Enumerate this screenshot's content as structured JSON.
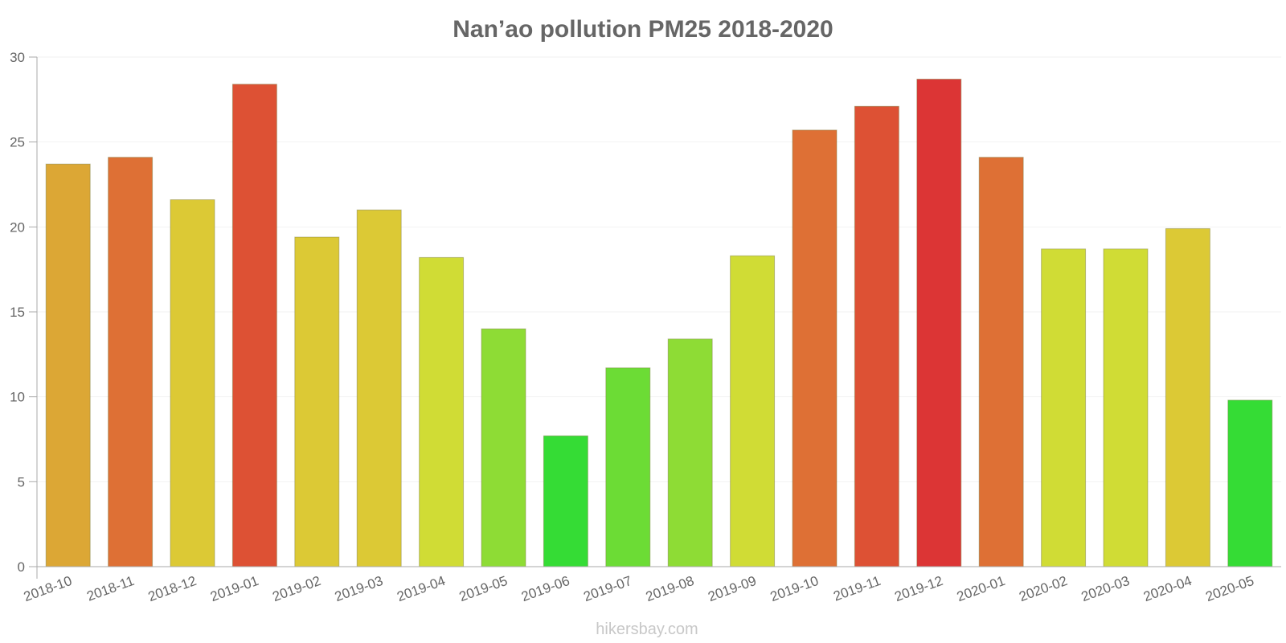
{
  "chart_data": {
    "type": "bar",
    "title": "Nan’ao pollution PM25 2018-2020",
    "xlabel": "",
    "ylabel": "",
    "ylim": [
      0,
      30
    ],
    "yticks": [
      0,
      5,
      10,
      15,
      20,
      25,
      30
    ],
    "grid": true,
    "legend": "none",
    "categories": [
      "2018-10",
      "2018-11",
      "2018-12",
      "2019-01",
      "2019-02",
      "2019-03",
      "2019-04",
      "2019-05",
      "2019-06",
      "2019-07",
      "2019-08",
      "2019-09",
      "2019-10",
      "2019-11",
      "2019-12",
      "2020-01",
      "2020-02",
      "2020-03",
      "2020-04",
      "2020-05"
    ],
    "values": [
      23.7,
      24.1,
      21.6,
      28.4,
      19.4,
      21.0,
      18.2,
      14.0,
      7.7,
      11.7,
      13.4,
      18.3,
      25.7,
      27.1,
      28.7,
      24.1,
      18.7,
      18.7,
      19.9,
      9.8
    ],
    "colors": [
      "#dca735",
      "#de7035",
      "#dcc935",
      "#dd5134",
      "#dcc935",
      "#dcc935",
      "#d0dc35",
      "#8edc35",
      "#35dc35",
      "#6cdc35",
      "#8edc35",
      "#d0dc35",
      "#de7035",
      "#dd5134",
      "#dc3535",
      "#de7035",
      "#d0dc35",
      "#d0dc35",
      "#dcc935",
      "#35dc35"
    ]
  },
  "watermark": "hikersbay.com"
}
